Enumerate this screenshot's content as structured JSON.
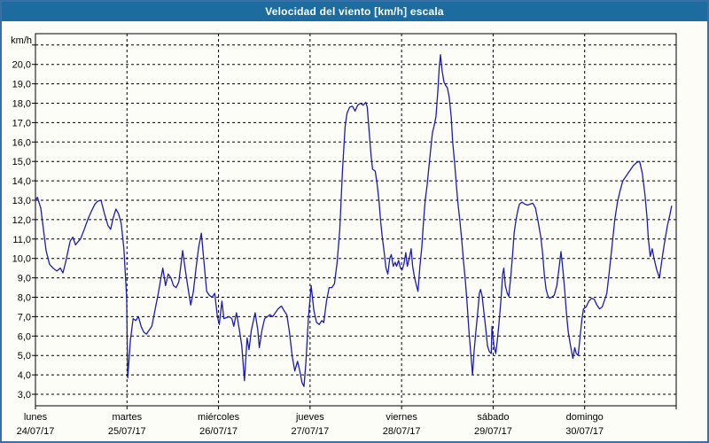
{
  "window": {
    "title": "Velocidad del viento [km/h] escala"
  },
  "colors": {
    "title_bar": "#1d6c9f",
    "title_text": "#ffffff",
    "outer_border": "#3a6ea5",
    "plot_border": "#000000",
    "grid": "#000000",
    "line": "#1c1cb4",
    "background": "#fdfdf8",
    "label_text": "#000000"
  },
  "chart_data": {
    "type": "line",
    "title": "Velocidad del viento [km/h] escala",
    "ylabel": "km/h",
    "xlabel": "",
    "grid": "dashed",
    "legend": "none",
    "y_axis": {
      "unit_label": "km/h",
      "tick_step": 1.0,
      "labeled_min": 3.0,
      "labeled_max": 20.0,
      "grid_top_value": 21.0,
      "visible_range": [
        2.4,
        21.6
      ],
      "decimal_separator": ",",
      "tick_labels": [
        "20,0",
        "19,0",
        "18,0",
        "17,0",
        "16,0",
        "15,0",
        "14,0",
        "13,0",
        "12,0",
        "11,0",
        "10,0",
        "9,0",
        "8,0",
        "7,0",
        "6,0",
        "5,0",
        "4,0",
        "3,0"
      ]
    },
    "x_axis": {
      "span_hours": 168,
      "days": [
        {
          "name": "lunes",
          "date": "24/07/17"
        },
        {
          "name": "martes",
          "date": "25/07/17"
        },
        {
          "name": "miércoles",
          "date": "26/07/17"
        },
        {
          "name": "jueves",
          "date": "27/07/17"
        },
        {
          "name": "viernes",
          "date": "28/07/17"
        },
        {
          "name": "sábado",
          "date": "29/07/17"
        },
        {
          "name": "domingo",
          "date": "30/07/17"
        }
      ]
    },
    "series": [
      {
        "name": "Velocidad del viento",
        "unit": "km/h",
        "color": "#1c1cb4",
        "points_hours_kmh": [
          [
            0,
            13.0
          ],
          [
            0.5,
            13.15
          ],
          [
            1.4,
            12.6
          ],
          [
            2.8,
            10.4
          ],
          [
            3.7,
            9.7
          ],
          [
            4.6,
            9.5
          ],
          [
            5.6,
            9.35
          ],
          [
            6.5,
            9.5
          ],
          [
            7.2,
            9.25
          ],
          [
            7.9,
            9.8
          ],
          [
            9.1,
            10.9
          ],
          [
            9.8,
            11.1
          ],
          [
            10.5,
            10.7
          ],
          [
            11.1,
            10.85
          ],
          [
            11.8,
            11.0
          ],
          [
            12.8,
            11.5
          ],
          [
            13.7,
            12.0
          ],
          [
            14.6,
            12.4
          ],
          [
            15.6,
            12.8
          ],
          [
            16.3,
            12.95
          ],
          [
            17.2,
            13.0
          ],
          [
            18.1,
            12.3
          ],
          [
            19.0,
            11.7
          ],
          [
            19.7,
            11.5
          ],
          [
            20.4,
            12.1
          ],
          [
            21.1,
            12.55
          ],
          [
            21.8,
            12.3
          ],
          [
            22.5,
            11.8
          ],
          [
            23.2,
            10.5
          ],
          [
            23.9,
            8.0
          ],
          [
            24.2,
            3.85
          ],
          [
            24.9,
            5.8
          ],
          [
            25.6,
            6.9
          ],
          [
            26.3,
            6.8
          ],
          [
            27.0,
            7.0
          ],
          [
            27.7,
            6.5
          ],
          [
            28.4,
            6.2
          ],
          [
            29.1,
            6.1
          ],
          [
            29.8,
            6.3
          ],
          [
            30.5,
            6.5
          ],
          [
            31.2,
            7.2
          ],
          [
            32.2,
            8.2
          ],
          [
            32.9,
            9.0
          ],
          [
            33.4,
            9.5
          ],
          [
            34.1,
            8.6
          ],
          [
            34.8,
            9.2
          ],
          [
            35.5,
            9.0
          ],
          [
            36.2,
            8.6
          ],
          [
            36.9,
            8.5
          ],
          [
            37.6,
            8.8
          ],
          [
            38.6,
            10.4
          ],
          [
            39.3,
            9.4
          ],
          [
            40.0,
            8.5
          ],
          [
            40.7,
            7.6
          ],
          [
            41.4,
            8.3
          ],
          [
            42.1,
            9.5
          ],
          [
            42.8,
            10.6
          ],
          [
            43.5,
            11.3
          ],
          [
            44.2,
            9.8
          ],
          [
            44.9,
            8.3
          ],
          [
            45.6,
            8.1
          ],
          [
            46.3,
            8.0
          ],
          [
            47.0,
            8.2
          ],
          [
            47.7,
            7.0
          ],
          [
            48.2,
            6.6
          ],
          [
            48.9,
            7.8
          ],
          [
            49.4,
            6.9
          ],
          [
            50.1,
            6.95
          ],
          [
            50.8,
            7.0
          ],
          [
            51.5,
            6.9
          ],
          [
            52.0,
            6.5
          ],
          [
            52.7,
            7.2
          ],
          [
            53.4,
            6.4
          ],
          [
            54.1,
            5.5
          ],
          [
            54.8,
            3.7
          ],
          [
            55.5,
            5.9
          ],
          [
            56.0,
            5.3
          ],
          [
            56.6,
            6.3
          ],
          [
            57.6,
            7.2
          ],
          [
            58.3,
            6.3
          ],
          [
            58.7,
            5.4
          ],
          [
            59.4,
            6.3
          ],
          [
            60.1,
            6.9
          ],
          [
            60.8,
            7.0
          ],
          [
            61.5,
            7.1
          ],
          [
            62.2,
            7.0
          ],
          [
            62.9,
            7.2
          ],
          [
            63.6,
            7.4
          ],
          [
            64.5,
            7.55
          ],
          [
            65.2,
            7.3
          ],
          [
            65.9,
            7.1
          ],
          [
            66.6,
            6.2
          ],
          [
            67.3,
            5.0
          ],
          [
            68.0,
            4.2
          ],
          [
            68.7,
            4.7
          ],
          [
            69.2,
            4.3
          ],
          [
            69.9,
            3.6
          ],
          [
            70.4,
            3.4
          ],
          [
            70.9,
            4.6
          ],
          [
            71.6,
            7.0
          ],
          [
            72.3,
            8.6
          ],
          [
            73.0,
            7.3
          ],
          [
            73.7,
            6.7
          ],
          [
            74.4,
            6.6
          ],
          [
            75.1,
            6.8
          ],
          [
            75.6,
            6.7
          ],
          [
            76.3,
            7.8
          ],
          [
            77.0,
            8.5
          ],
          [
            77.7,
            8.5
          ],
          [
            78.4,
            8.7
          ],
          [
            79.1,
            9.8
          ],
          [
            79.8,
            11.5
          ],
          [
            80.5,
            14.5
          ],
          [
            81.2,
            16.8
          ],
          [
            81.7,
            17.5
          ],
          [
            82.4,
            17.8
          ],
          [
            83.1,
            17.85
          ],
          [
            83.8,
            17.6
          ],
          [
            84.5,
            17.9
          ],
          [
            85.2,
            18.0
          ],
          [
            85.9,
            17.9
          ],
          [
            86.6,
            18.05
          ],
          [
            87.0,
            17.8
          ],
          [
            87.5,
            16.5
          ],
          [
            88.0,
            15.3
          ],
          [
            88.4,
            14.6
          ],
          [
            89.1,
            14.5
          ],
          [
            89.6,
            13.8
          ],
          [
            90.1,
            12.9
          ],
          [
            90.5,
            11.9
          ],
          [
            91.0,
            11.0
          ],
          [
            91.5,
            10.2
          ],
          [
            91.9,
            9.5
          ],
          [
            92.4,
            9.2
          ],
          [
            92.9,
            10.0
          ],
          [
            93.3,
            10.2
          ],
          [
            93.8,
            9.6
          ],
          [
            94.3,
            9.8
          ],
          [
            94.7,
            9.6
          ],
          [
            95.2,
            9.9
          ],
          [
            95.7,
            9.5
          ],
          [
            96.1,
            9.4
          ],
          [
            96.6,
            9.7
          ],
          [
            97.1,
            10.3
          ],
          [
            97.5,
            9.6
          ],
          [
            98.0,
            10.0
          ],
          [
            98.5,
            10.5
          ],
          [
            98.9,
            9.6
          ],
          [
            99.4,
            9.0
          ],
          [
            99.9,
            8.6
          ],
          [
            100.3,
            8.3
          ],
          [
            100.8,
            9.6
          ],
          [
            101.3,
            10.6
          ],
          [
            101.7,
            11.8
          ],
          [
            102.2,
            13.0
          ],
          [
            102.7,
            13.8
          ],
          [
            103.1,
            14.6
          ],
          [
            103.6,
            15.6
          ],
          [
            104.1,
            16.5
          ],
          [
            104.5,
            16.8
          ],
          [
            105.0,
            17.3
          ],
          [
            105.5,
            18.6
          ],
          [
            105.9,
            19.9
          ],
          [
            106.2,
            20.5
          ],
          [
            106.6,
            19.7
          ],
          [
            107.1,
            19.1
          ],
          [
            107.6,
            18.9
          ],
          [
            108.0,
            18.8
          ],
          [
            108.5,
            18.3
          ],
          [
            109.0,
            17.3
          ],
          [
            109.4,
            16.0
          ],
          [
            109.9,
            14.9
          ],
          [
            110.4,
            13.7
          ],
          [
            110.8,
            12.8
          ],
          [
            111.3,
            11.9
          ],
          [
            111.8,
            10.9
          ],
          [
            112.2,
            9.9
          ],
          [
            112.7,
            8.9
          ],
          [
            113.2,
            7.6
          ],
          [
            113.6,
            6.4
          ],
          [
            114.1,
            5.2
          ],
          [
            114.6,
            4.0
          ],
          [
            115.0,
            5.2
          ],
          [
            115.5,
            6.3
          ],
          [
            116.0,
            7.3
          ],
          [
            116.4,
            8.2
          ],
          [
            116.7,
            8.4
          ],
          [
            117.1,
            8.1
          ],
          [
            117.6,
            7.2
          ],
          [
            118.1,
            6.3
          ],
          [
            118.5,
            5.5
          ],
          [
            119.0,
            5.2
          ],
          [
            119.5,
            5.1
          ],
          [
            119.7,
            6.5
          ],
          [
            120.2,
            5.5
          ],
          [
            120.7,
            5.1
          ],
          [
            121.1,
            5.8
          ],
          [
            121.6,
            6.8
          ],
          [
            122.1,
            8.0
          ],
          [
            122.5,
            9.2
          ],
          [
            122.8,
            9.5
          ],
          [
            123.2,
            8.6
          ],
          [
            123.7,
            8.2
          ],
          [
            124.1,
            8.05
          ],
          [
            124.6,
            9.0
          ],
          [
            125.1,
            10.2
          ],
          [
            125.5,
            11.3
          ],
          [
            126.0,
            12.0
          ],
          [
            126.5,
            12.5
          ],
          [
            126.9,
            12.8
          ],
          [
            127.6,
            12.9
          ],
          [
            128.3,
            12.8
          ],
          [
            129.0,
            12.75
          ],
          [
            129.7,
            12.8
          ],
          [
            130.4,
            12.85
          ],
          [
            131.1,
            12.6
          ],
          [
            131.8,
            11.9
          ],
          [
            132.5,
            11.1
          ],
          [
            133.0,
            10.2
          ],
          [
            133.4,
            9.2
          ],
          [
            133.9,
            8.4
          ],
          [
            134.4,
            8.05
          ],
          [
            134.8,
            7.95
          ],
          [
            135.3,
            8.0
          ],
          [
            136.0,
            8.1
          ],
          [
            136.7,
            8.6
          ],
          [
            137.4,
            9.7
          ],
          [
            137.8,
            10.35
          ],
          [
            138.3,
            9.4
          ],
          [
            138.8,
            8.3
          ],
          [
            139.3,
            7.0
          ],
          [
            139.7,
            6.2
          ],
          [
            140.2,
            5.6
          ],
          [
            140.9,
            4.85
          ],
          [
            141.4,
            5.4
          ],
          [
            141.8,
            5.1
          ],
          [
            142.3,
            5.0
          ],
          [
            142.8,
            6.0
          ],
          [
            143.3,
            6.9
          ],
          [
            143.7,
            7.4
          ],
          [
            144.4,
            7.5
          ],
          [
            145.1,
            7.8
          ],
          [
            145.8,
            7.95
          ],
          [
            146.5,
            7.9
          ],
          [
            147.2,
            7.6
          ],
          [
            147.9,
            7.4
          ],
          [
            148.6,
            7.5
          ],
          [
            149.3,
            7.9
          ],
          [
            149.8,
            8.2
          ],
          [
            150.5,
            9.4
          ],
          [
            151.2,
            10.7
          ],
          [
            151.9,
            12.0
          ],
          [
            152.6,
            12.9
          ],
          [
            153.3,
            13.5
          ],
          [
            154.0,
            14.0
          ],
          [
            154.7,
            14.2
          ],
          [
            155.4,
            14.4
          ],
          [
            156.1,
            14.6
          ],
          [
            156.8,
            14.8
          ],
          [
            157.7,
            14.95
          ],
          [
            158.4,
            15.0
          ],
          [
            159.1,
            14.4
          ],
          [
            159.8,
            13.3
          ],
          [
            160.3,
            12.2
          ],
          [
            160.7,
            11.0
          ],
          [
            161.2,
            10.1
          ],
          [
            161.7,
            10.5
          ],
          [
            162.2,
            10.0
          ],
          [
            162.9,
            9.4
          ],
          [
            163.6,
            9.0
          ],
          [
            164.3,
            10.0
          ],
          [
            165.0,
            10.9
          ],
          [
            165.7,
            11.7
          ],
          [
            166.4,
            12.3
          ],
          [
            166.8,
            12.7
          ]
        ]
      }
    ]
  }
}
